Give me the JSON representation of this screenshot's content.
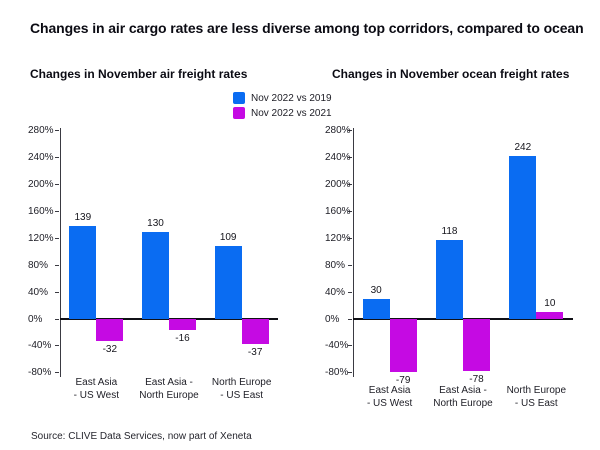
{
  "page": {
    "title": "Changes in air cargo rates are less diverse among top corridors, compared to ocean",
    "source": "Source: CLIVE Data Services, now part of Xeneta"
  },
  "legend": {
    "position": "top-center",
    "items": [
      {
        "label": "Nov 2022 vs 2019",
        "color": "#0a6cf2"
      },
      {
        "label": "Nov 2022 vs 2021",
        "color": "#c50ae3"
      }
    ]
  },
  "chart_data": [
    {
      "type": "bar",
      "title": "Changes in November air freight rates",
      "categories": [
        "East Asia\n- US West",
        "East Asia -\nNorth Europe",
        "North Europe\n- US East"
      ],
      "series": [
        {
          "name": "Nov 2022 vs 2019",
          "color": "#0a6cf2",
          "values": [
            139,
            130,
            109
          ]
        },
        {
          "name": "Nov 2022 vs 2021",
          "color": "#c50ae3",
          "values": [
            -32,
            -16,
            -37
          ]
        }
      ],
      "ylim": [
        -80,
        280
      ],
      "ytick_step": 40,
      "yticks": [
        "280%",
        "240%",
        "200%",
        "160%",
        "120%",
        "80%",
        "40%",
        "0%",
        "-40%",
        "-80%"
      ],
      "grid": false,
      "data_labels": true
    },
    {
      "type": "bar",
      "title": "Changes in November ocean freight rates",
      "categories": [
        "East Asia\n- US West",
        "East Asia -\nNorth Europe",
        "North Europe\n- US East"
      ],
      "series": [
        {
          "name": "Nov 2022 vs 2019",
          "color": "#0a6cf2",
          "values": [
            30,
            118,
            242
          ]
        },
        {
          "name": "Nov 2022 vs 2021",
          "color": "#c50ae3",
          "values": [
            -79,
            -78,
            10
          ]
        }
      ],
      "ylim": [
        -80,
        280
      ],
      "ytick_step": 40,
      "yticks": [
        "280%",
        "240%",
        "200%",
        "160%",
        "120%",
        "80%",
        "40%",
        "0%",
        "-40%",
        "-80%"
      ],
      "grid": false,
      "data_labels": true
    }
  ]
}
